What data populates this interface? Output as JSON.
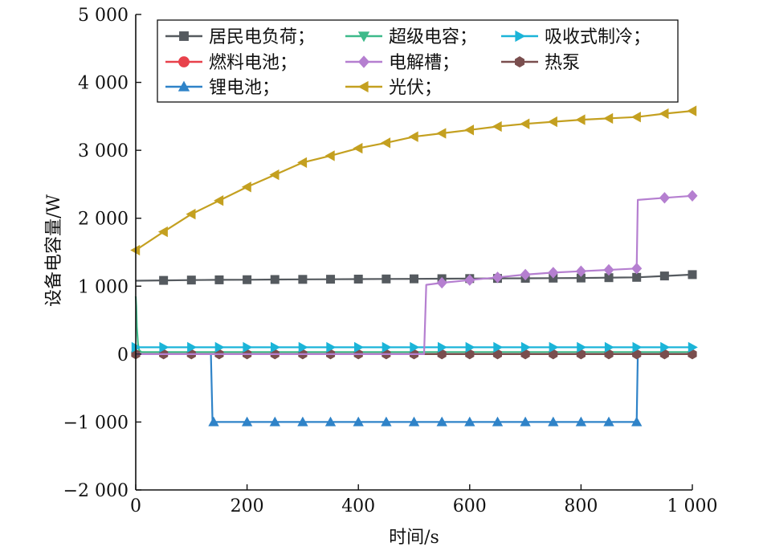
{
  "chart_data": {
    "type": "line",
    "title": "",
    "xlabel": "时间/s",
    "ylabel": "设备电容量/W",
    "xlim": [
      0,
      1000
    ],
    "ylim": [
      -2000,
      5000
    ],
    "xticks": [
      0,
      200,
      400,
      600,
      800,
      1000
    ],
    "xtick_labels": [
      "0",
      "200",
      "400",
      "600",
      "800",
      "1 000"
    ],
    "yticks": [
      -2000,
      -1000,
      0,
      1000,
      2000,
      3000,
      4000,
      5000
    ],
    "ytick_labels": [
      "−2 000",
      "−1 000",
      "0",
      "1 000",
      "2 000",
      "3 000",
      "4 000",
      "5 000"
    ],
    "grid": false,
    "legend_position": "top",
    "series": [
      {
        "name": "居民电负荷；",
        "color": "#555a5f",
        "marker": "square",
        "x": [
          0,
          50,
          100,
          150,
          200,
          250,
          300,
          350,
          400,
          450,
          500,
          550,
          600,
          650,
          700,
          750,
          800,
          850,
          900,
          950,
          1000
        ],
        "y": [
          1080,
          1085,
          1090,
          1093,
          1095,
          1098,
          1100,
          1102,
          1104,
          1106,
          1108,
          1110,
          1112,
          1114,
          1116,
          1118,
          1120,
          1125,
          1130,
          1150,
          1170
        ],
        "marker_x": [
          50,
          100,
          150,
          200,
          250,
          300,
          350,
          400,
          450,
          500,
          550,
          600,
          650,
          700,
          750,
          800,
          850,
          900,
          950,
          1000
        ]
      },
      {
        "name": "超级电容；",
        "color": "#3dba8a",
        "marker": "triangle-down",
        "x": [
          0,
          1,
          2,
          4,
          6,
          10,
          20,
          1000
        ],
        "y": [
          850,
          700,
          400,
          150,
          60,
          30,
          30,
          30
        ],
        "marker_x": []
      },
      {
        "name": "吸收式制冷；",
        "color": "#1bb4d8",
        "marker": "triangle-right",
        "x": [
          0,
          1000
        ],
        "y": [
          100,
          100
        ],
        "marker_x": [
          0,
          50,
          100,
          150,
          200,
          250,
          300,
          350,
          400,
          450,
          500,
          550,
          600,
          650,
          700,
          750,
          800,
          850,
          900,
          950,
          1000
        ]
      },
      {
        "name": "燃料电池；",
        "color": "#e8414b",
        "marker": "circle",
        "x": [
          0,
          1000
        ],
        "y": [
          0,
          0
        ],
        "marker_x": []
      },
      {
        "name": "电解槽；",
        "color": "#b57fd0",
        "marker": "diamond",
        "x": [
          0,
          518,
          522,
          550,
          600,
          650,
          700,
          750,
          800,
          850,
          900,
          902,
          950,
          1000
        ],
        "y": [
          0,
          0,
          1020,
          1050,
          1090,
          1130,
          1170,
          1200,
          1220,
          1240,
          1260,
          2270,
          2300,
          2330
        ],
        "marker_x": [
          550,
          600,
          650,
          700,
          750,
          800,
          850,
          900,
          950,
          1000
        ]
      },
      {
        "name": "热泵",
        "color": "#7a4e4e",
        "marker": "hexagon",
        "x": [
          0,
          1000
        ],
        "y": [
          0,
          0
        ],
        "marker_x": [
          0,
          50,
          100,
          150,
          200,
          250,
          300,
          350,
          400,
          450,
          500,
          550,
          600,
          650,
          700,
          750,
          800,
          850,
          900,
          950,
          1000
        ]
      },
      {
        "name": "锂电池；",
        "color": "#2f83c8",
        "marker": "triangle-up",
        "x": [
          0,
          135,
          138,
          900,
          902,
          1000
        ],
        "y": [
          0,
          0,
          -1000,
          -1000,
          0,
          0
        ],
        "marker_x": [
          140,
          200,
          250,
          300,
          350,
          400,
          450,
          500,
          550,
          600,
          650,
          700,
          750,
          800,
          850,
          900
        ]
      },
      {
        "name": "光伏；",
        "color": "#c4a020",
        "marker": "triangle-left",
        "x": [
          0,
          50,
          100,
          150,
          200,
          250,
          300,
          350,
          400,
          450,
          500,
          550,
          600,
          650,
          700,
          750,
          800,
          850,
          900,
          950,
          1000
        ],
        "y": [
          1530,
          1800,
          2060,
          2260,
          2460,
          2640,
          2820,
          2920,
          3030,
          3110,
          3200,
          3250,
          3300,
          3350,
          3390,
          3420,
          3450,
          3470,
          3490,
          3540,
          3580
        ],
        "marker_x": [
          0,
          50,
          100,
          150,
          200,
          250,
          300,
          350,
          400,
          450,
          500,
          550,
          600,
          650,
          700,
          750,
          800,
          850,
          900,
          950,
          1000
        ]
      }
    ],
    "legend_order": [
      0,
      1,
      2,
      3,
      4,
      5,
      6,
      7
    ]
  }
}
